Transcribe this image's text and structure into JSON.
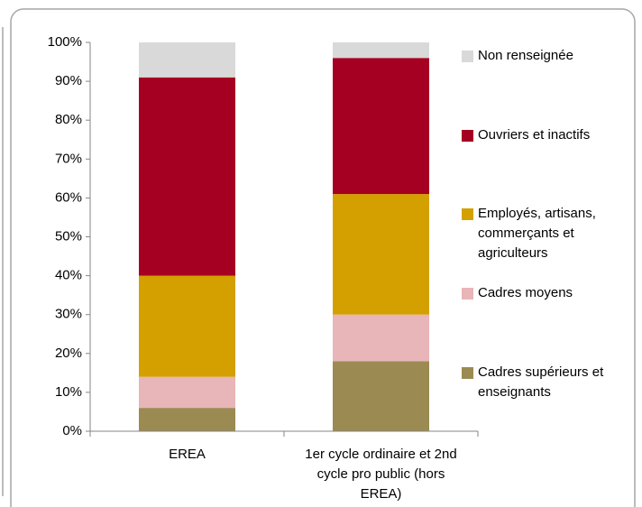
{
  "chart_data": {
    "type": "stacked_bar",
    "categories": [
      "EREA",
      "1er cycle ordinaire et 2nd cycle pro public (hors EREA)"
    ],
    "series": [
      {
        "name": "Cadres supérieurs et enseignants",
        "color": "#9b8b52",
        "values": [
          6,
          18
        ]
      },
      {
        "name": "Cadres moyens",
        "color": "#e8b5b8",
        "values": [
          8,
          12
        ]
      },
      {
        "name": "Employés, artisans, commerçants et agriculteurs",
        "color": "#d4a000",
        "values": [
          26,
          31
        ]
      },
      {
        "name": "Ouvriers et inactifs",
        "color": "#a50021",
        "values": [
          51,
          35
        ]
      },
      {
        "name": "Non renseignée",
        "color": "#d9d9d9",
        "values": [
          9,
          4
        ]
      }
    ],
    "ylim": [
      0,
      100
    ],
    "yticks": [
      {
        "value": 0,
        "label": "0%"
      },
      {
        "value": 10,
        "label": "10%"
      },
      {
        "value": 20,
        "label": "20%"
      },
      {
        "value": 30,
        "label": "30%"
      },
      {
        "value": 40,
        "label": "40%"
      },
      {
        "value": 50,
        "label": "50%"
      },
      {
        "value": 60,
        "label": "60%"
      },
      {
        "value": 70,
        "label": "70%"
      },
      {
        "value": 80,
        "label": "80%"
      },
      {
        "value": 90,
        "label": "90%"
      },
      {
        "value": 100,
        "label": "100%"
      }
    ],
    "legend": "right"
  }
}
